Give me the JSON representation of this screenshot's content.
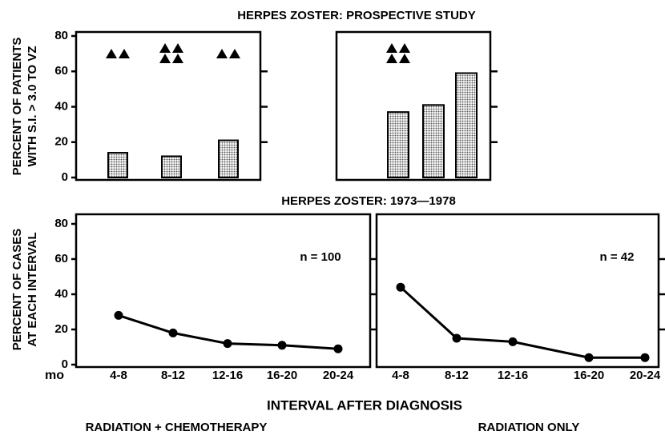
{
  "chart_data": [
    {
      "type": "bar",
      "title": "HERPES ZOSTER: PROSPECTIVE STUDY",
      "ylabel": [
        "PERCENT OF PATIENTS",
        "WITH S.I. > 3.0 TO VZ"
      ],
      "categories": [
        null,
        null,
        null
      ],
      "values": [
        14,
        12,
        21
      ],
      "triangles": [
        2,
        4,
        2
      ],
      "color": "#bbbbbb",
      "ylim": [
        0,
        80
      ],
      "yticks": [
        0,
        20,
        40,
        60,
        80
      ]
    },
    {
      "type": "bar",
      "categories": [
        null,
        null,
        null
      ],
      "values": [
        37,
        41,
        59
      ],
      "triangles": [
        4,
        0,
        0
      ],
      "color": "#bbbbbb",
      "ylim": [
        0,
        80
      ],
      "yticks": [
        0,
        20,
        40,
        60,
        80
      ]
    },
    {
      "type": "line",
      "title": "HERPES ZOSTER: 1973—1978",
      "ylabel": [
        "PERCENT OF CASES",
        "AT EACH INTERVAL"
      ],
      "xlabel": "INTERVAL AFTER DIAGNOSIS",
      "unit": "mo",
      "group": "RADIATION + CHEMOTHERAPY",
      "annotation": "n = 100",
      "categories": [
        "4-8",
        "8-12",
        "12-16",
        "16-20",
        "20-24"
      ],
      "values": [
        28,
        18,
        12,
        11,
        9
      ],
      "color": "#000000",
      "ylim": [
        0,
        80
      ],
      "yticks": [
        0,
        20,
        40,
        60,
        80
      ]
    },
    {
      "type": "line",
      "group": "RADIATION ONLY",
      "annotation": "n = 42",
      "categories": [
        "4-8",
        "8-12",
        "12-16",
        "16-20",
        "20-24"
      ],
      "values": [
        44,
        15,
        13,
        4,
        4
      ],
      "color": "#000000",
      "ylim": [
        0,
        80
      ],
      "yticks": [
        0,
        20,
        40,
        60,
        80
      ]
    }
  ]
}
